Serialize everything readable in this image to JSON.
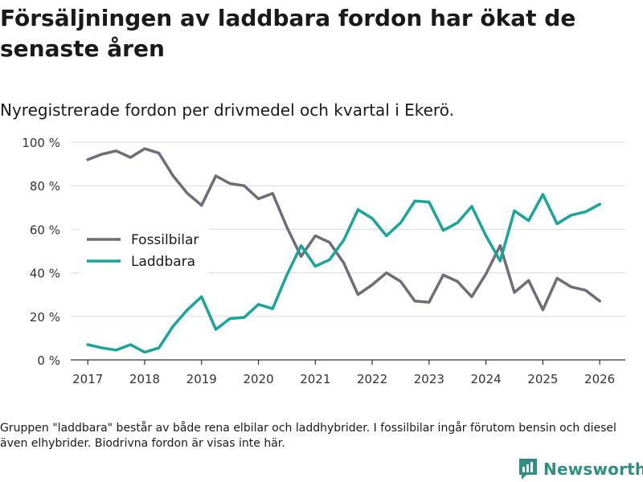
{
  "title": "Försäljningen av laddbara fordon har ökat de senaste åren",
  "subtitle": "Nyregistrerade fordon per drivmedel och kvartal i Ekerö.",
  "footnote": "Gruppen \"laddbara\" består av både rena elbilar och laddhybrider. I fossilbilar ingår förutom bensin och diesel även elhybrider. Biodrivna fordon är visas inte här.",
  "brand": {
    "name": "Newsworthy",
    "icon": "newsworthy-logo-icon"
  },
  "colors": {
    "fossil": "#6f6d75",
    "laddbara": "#1aa59a",
    "grid": "#dcdcdc",
    "axis": "#333333",
    "text": "#333333",
    "brand": "#2f8f80"
  },
  "chart_data": {
    "type": "line",
    "title": "Nyregistrerade fordon per drivmedel och kvartal i Ekerö.",
    "xlabel": "",
    "ylabel": "",
    "xlim": [
      2016.7,
      2026.45
    ],
    "ylim": [
      0,
      100
    ],
    "x_ticks": [
      2017,
      2018,
      2019,
      2020,
      2021,
      2022,
      2023,
      2024,
      2025,
      2026
    ],
    "x_tick_labels": [
      "2017",
      "2018",
      "2019",
      "2020",
      "2021",
      "2022",
      "2023",
      "2024",
      "2025",
      "2026"
    ],
    "y_ticks": [
      0,
      20,
      40,
      60,
      80,
      100
    ],
    "y_tick_labels": [
      "0 %",
      "20 %",
      "40 %",
      "60 %",
      "80 %",
      "100 %"
    ],
    "grid": true,
    "legend_position": "center-left",
    "x": [
      2017,
      2017.25,
      2017.5,
      2017.75,
      2018,
      2018.25,
      2018.5,
      2018.75,
      2019,
      2019.25,
      2019.5,
      2019.75,
      2020,
      2020.25,
      2020.5,
      2020.75,
      2021,
      2021.25,
      2021.5,
      2021.75,
      2022,
      2022.25,
      2022.5,
      2022.75,
      2023,
      2023.25,
      2023.5,
      2023.75,
      2024,
      2024.25,
      2024.5,
      2024.75,
      2025,
      2025.25,
      2025.5,
      2025.75,
      2026
    ],
    "series": [
      {
        "name": "Fossilbilar",
        "color": "#6f6d75",
        "values": [
          92,
          94.5,
          96,
          93,
          97,
          95,
          84.5,
          76.5,
          71,
          84.5,
          81,
          80,
          74,
          76.5,
          61,
          47.5,
          57,
          54,
          44.5,
          30,
          34.5,
          40,
          36,
          27,
          26.5,
          39,
          36,
          29,
          39.5,
          52.5,
          31,
          36.5,
          23,
          37.5,
          33.5,
          32,
          27
        ]
      },
      {
        "name": "Laddbara",
        "color": "#1aa59a",
        "values": [
          7,
          5.5,
          4.5,
          7,
          3.5,
          5.5,
          15.5,
          23,
          29,
          14,
          19,
          19.5,
          25.5,
          23.5,
          39,
          52.5,
          43,
          46,
          55,
          69,
          65,
          57,
          63,
          73,
          72.5,
          59.5,
          63,
          70.5,
          57,
          45.5,
          68.5,
          64,
          76,
          62.5,
          66.5,
          68,
          71.5
        ]
      }
    ]
  }
}
